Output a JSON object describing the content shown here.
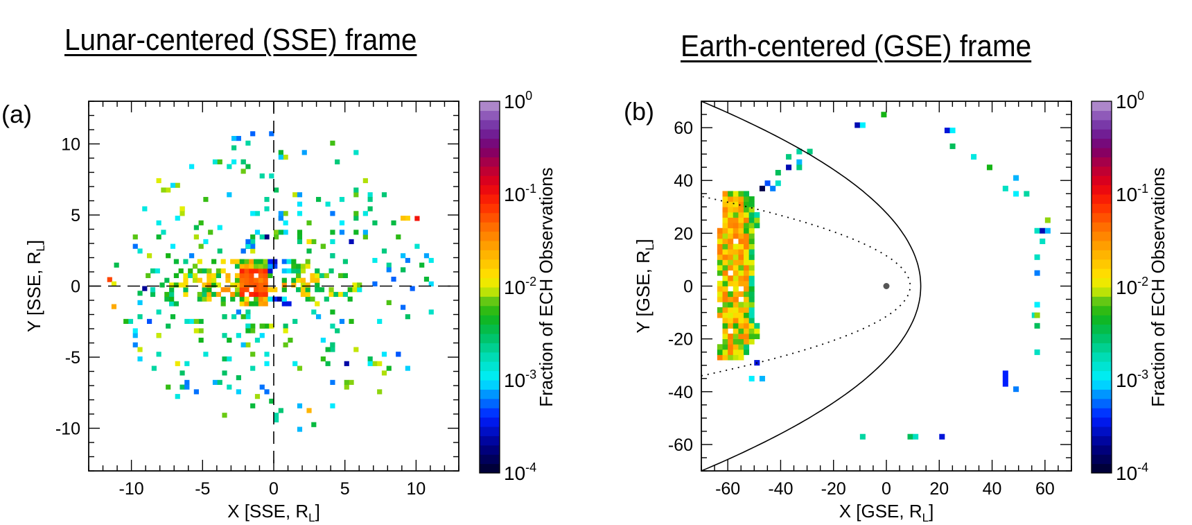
{
  "titles": {
    "left": "Lunar-centered (SSE) frame",
    "right": "Earth-centered (GSE) frame"
  },
  "chart_data": [
    {
      "id": "a",
      "panel_label": "(a)",
      "type": "heatmap",
      "title": "Lunar-centered (SSE) frame",
      "xlabel": "X [SSE, R",
      "xlabel_sub": "L",
      "xlabel_end": "]",
      "ylabel": "Y [SSE, R",
      "ylabel_sub": "L",
      "ylabel_end": "]",
      "xlim": [
        -13,
        13
      ],
      "ylim": [
        -13,
        13
      ],
      "xticks": [
        -10,
        -5,
        0,
        5,
        10
      ],
      "yticks": [
        -10,
        -5,
        0,
        5,
        10
      ],
      "xtick_labels": [
        "-10",
        "-5",
        "0",
        "5",
        "10"
      ],
      "ytick_labels": [
        "-10",
        "-5",
        "0",
        "5",
        "10"
      ],
      "minor_tick_step": 1,
      "bin_size": 0.33,
      "reference_lines": [
        {
          "name": "x-zero-dashed",
          "orientation": "vertical",
          "value": 0,
          "style": "dashed"
        },
        {
          "name": "y-zero-dashed",
          "orientation": "horizontal",
          "value": 0,
          "style": "dashed"
        }
      ],
      "colorbar": {
        "label": "Fraction of ECH Observations",
        "scale": "log",
        "range": [
          0.0001,
          1
        ],
        "tick_labels": [
          {
            "base": "10",
            "exp": "0"
          },
          {
            "base": "10",
            "exp": "-1"
          },
          {
            "base": "10",
            "exp": "-2"
          },
          {
            "base": "10",
            "exp": "-3"
          },
          {
            "base": "10",
            "exp": "-4"
          }
        ]
      },
      "density_regions": [
        {
          "description": "red/dark-red core just dayward of Moon",
          "x": [
            -2.2,
            -0.6
          ],
          "y": [
            -1.0,
            1.2
          ],
          "log_fraction": -1.0
        },
        {
          "description": "orange/yellow band along X axis (nightside/wake)",
          "x": [
            -8.5,
            5.5
          ],
          "y": [
            -1.3,
            1.7
          ],
          "log_fraction": -1.8
        },
        {
          "description": "sparse green/cyan scattered bins on circle ~r=10",
          "x": [
            -11.5,
            11
          ],
          "y": [
            -10.5,
            10.5
          ],
          "log_fraction": -2.6
        }
      ]
    },
    {
      "id": "b",
      "panel_label": "(b)",
      "type": "heatmap",
      "title": "Earth-centered (GSE) frame",
      "xlabel": "X [GSE, R",
      "xlabel_sub": "L",
      "xlabel_end": "]",
      "ylabel": "Y [GSE, R",
      "ylabel_sub": "L",
      "ylabel_end": "]",
      "xlim": [
        -70,
        70
      ],
      "ylim": [
        -70,
        70
      ],
      "xticks": [
        -60,
        -40,
        -20,
        0,
        20,
        40,
        60
      ],
      "yticks": [
        -60,
        -40,
        -20,
        0,
        20,
        40,
        60
      ],
      "xtick_labels": [
        "-60",
        "-40",
        "-20",
        "0",
        "20",
        "40",
        "60"
      ],
      "ytick_labels": [
        "-60",
        "-40",
        "-20",
        "0",
        "20",
        "40",
        "60"
      ],
      "minor_tick_step": 5,
      "bin_size": 2,
      "earth_marker": {
        "x": 0,
        "y": 0
      },
      "boundaries": [
        {
          "name": "bow-shock",
          "style": "solid",
          "nose_x": 13,
          "flank_at_x_minus70": 70
        },
        {
          "name": "magnetopause",
          "style": "dotted",
          "nose_x": 9,
          "flank_at_x_minus70": 34
        }
      ],
      "colorbar": {
        "label": "Fraction of ECH Observations",
        "scale": "log",
        "range": [
          0.0001,
          1
        ],
        "tick_labels": [
          {
            "base": "10",
            "exp": "0"
          },
          {
            "base": "10",
            "exp": "-1"
          },
          {
            "base": "10",
            "exp": "-2"
          },
          {
            "base": "10",
            "exp": "-3"
          },
          {
            "base": "10",
            "exp": "-4"
          }
        ]
      },
      "density_regions": [
        {
          "description": "dense yellow/orange/red band in magnetotail",
          "x": [
            -64,
            -49
          ],
          "y": [
            -28,
            34
          ],
          "log_fraction": -1.7
        }
      ],
      "sparse_bins": [
        {
          "x": -48,
          "y": 36,
          "logf": -3.9
        },
        {
          "x": -46,
          "y": 38,
          "logf": -3.3
        },
        {
          "x": -44,
          "y": 36,
          "logf": -3.2
        },
        {
          "x": -42,
          "y": 38,
          "logf": -2.8
        },
        {
          "x": -42,
          "y": 42,
          "logf": -2.5
        },
        {
          "x": -38,
          "y": 44,
          "logf": -3.6
        },
        {
          "x": -38,
          "y": 48,
          "logf": -2.6
        },
        {
          "x": -34,
          "y": 50,
          "logf": -2.7
        },
        {
          "x": -34,
          "y": 46,
          "logf": -3.1
        },
        {
          "x": -34,
          "y": 44,
          "logf": -2.6
        },
        {
          "x": -30,
          "y": 50,
          "logf": -2.6
        },
        {
          "x": -12,
          "y": 60,
          "logf": -3.6
        },
        {
          "x": -10,
          "y": 60,
          "logf": -3.0
        },
        {
          "x": -2,
          "y": 64,
          "logf": -2.3
        },
        {
          "x": 22,
          "y": 58,
          "logf": -3.5
        },
        {
          "x": 24,
          "y": 58,
          "logf": -3.0
        },
        {
          "x": 24,
          "y": 52,
          "logf": -2.5
        },
        {
          "x": 32,
          "y": 48,
          "logf": -2.9
        },
        {
          "x": 38,
          "y": 44,
          "logf": -2.3
        },
        {
          "x": 48,
          "y": 40,
          "logf": -3.1
        },
        {
          "x": 44,
          "y": 36,
          "logf": -2.8
        },
        {
          "x": 48,
          "y": 34,
          "logf": -3.0
        },
        {
          "x": 52,
          "y": 34,
          "logf": -2.7
        },
        {
          "x": 60,
          "y": 24,
          "logf": -2.1
        },
        {
          "x": 56,
          "y": 20,
          "logf": -2.8
        },
        {
          "x": 58,
          "y": 20,
          "logf": -3.6
        },
        {
          "x": 60,
          "y": 20,
          "logf": -3.1
        },
        {
          "x": 58,
          "y": 16,
          "logf": -2.8
        },
        {
          "x": 56,
          "y": 10,
          "logf": -2.8
        },
        {
          "x": 56,
          "y": 4,
          "logf": -3.2
        },
        {
          "x": 56,
          "y": -8,
          "logf": -3.0
        },
        {
          "x": 55,
          "y": -12,
          "logf": -2.8
        },
        {
          "x": 56,
          "y": -12,
          "logf": -2.1
        },
        {
          "x": 56,
          "y": -16,
          "logf": -2.5
        },
        {
          "x": 56,
          "y": -26,
          "logf": -2.8
        },
        {
          "x": 44,
          "y": -34,
          "logf": -3.4
        },
        {
          "x": 44,
          "y": -36,
          "logf": -3.4
        },
        {
          "x": 44,
          "y": -38,
          "logf": -3.4
        },
        {
          "x": 48,
          "y": -40,
          "logf": -3.2
        },
        {
          "x": -10,
          "y": -58,
          "logf": -2.7
        },
        {
          "x": 8,
          "y": -58,
          "logf": -2.5
        },
        {
          "x": 10,
          "y": -58,
          "logf": -2.8
        },
        {
          "x": 20,
          "y": -58,
          "logf": -3.5
        },
        {
          "x": -50,
          "y": -30,
          "logf": -3.5
        },
        {
          "x": -52,
          "y": -36,
          "logf": -3.0
        },
        {
          "x": -48,
          "y": -36,
          "logf": -3.1
        }
      ]
    }
  ]
}
